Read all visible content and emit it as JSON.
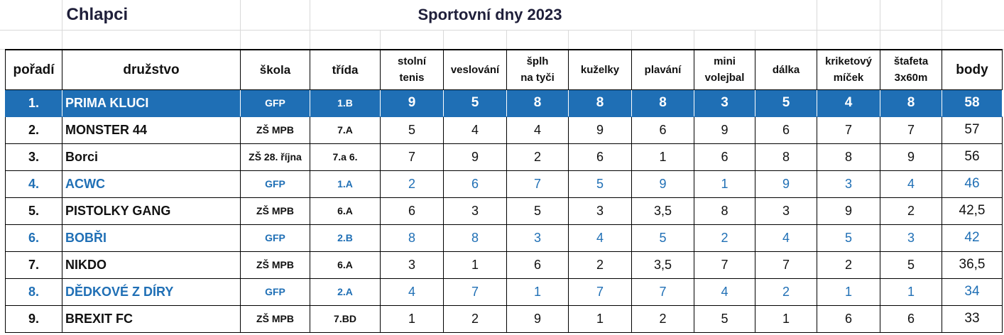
{
  "title_left": "Chlapci",
  "title_center": "Sportovní dny 2023",
  "headers": {
    "rank": "pořadí",
    "team": "družstvo",
    "school": "škola",
    "class": "třída",
    "d1a": "stolní",
    "d1b": "tenis",
    "d2": "veslování",
    "d3a": "šplh",
    "d3b": "na tyči",
    "d4": "kuželky",
    "d5": "plavání",
    "d6a": "mini",
    "d6b": "volejbal",
    "d7": "dálka",
    "d8a": "kriketový",
    "d8b": "míček",
    "d9a": "štafeta",
    "d9b": "3x60m",
    "points": "body"
  },
  "rows": [
    {
      "rank": "1.",
      "team": "PRIMA KLUCI",
      "school": "GFP",
      "cls": "1.B",
      "scores": [
        "9",
        "5",
        "8",
        "8",
        "8",
        "3",
        "5",
        "4",
        "8"
      ],
      "points": "58"
    },
    {
      "rank": "2.",
      "team": "MONSTER 44",
      "school": "ZŠ MPB",
      "cls": "7.A",
      "scores": [
        "5",
        "4",
        "4",
        "9",
        "6",
        "9",
        "6",
        "7",
        "7"
      ],
      "points": "57"
    },
    {
      "rank": "3.",
      "team": "Borci",
      "school": "ZŠ 28. října",
      "cls": "7.a 6.",
      "scores": [
        "7",
        "9",
        "2",
        "6",
        "1",
        "6",
        "8",
        "8",
        "9"
      ],
      "points": "56"
    },
    {
      "rank": "4.",
      "team": "ACWC",
      "school": "GFP",
      "cls": "1.A",
      "scores": [
        "2",
        "6",
        "7",
        "5",
        "9",
        "1",
        "9",
        "3",
        "4"
      ],
      "points": "46"
    },
    {
      "rank": "5.",
      "team": "PISTOLKY GANG",
      "school": "ZŠ MPB",
      "cls": "6.A",
      "scores": [
        "6",
        "3",
        "5",
        "3",
        "3,5",
        "8",
        "3",
        "9",
        "2"
      ],
      "points": "42,5"
    },
    {
      "rank": "6.",
      "team": "BOBŘI",
      "school": "GFP",
      "cls": "2.B",
      "scores": [
        "8",
        "8",
        "3",
        "4",
        "5",
        "2",
        "4",
        "5",
        "3"
      ],
      "points": "42"
    },
    {
      "rank": "7.",
      "team": "NIKDO",
      "school": "ZŠ MPB",
      "cls": "6.A",
      "scores": [
        "3",
        "1",
        "6",
        "2",
        "3,5",
        "7",
        "7",
        "2",
        "5"
      ],
      "points": "36,5"
    },
    {
      "rank": "8.",
      "team": "DĚDKOVÉ Z DÍRY",
      "school": "GFP",
      "cls": "2.A",
      "scores": [
        "4",
        "7",
        "1",
        "7",
        "7",
        "4",
        "2",
        "1",
        "1"
      ],
      "points": "34"
    },
    {
      "rank": "9.",
      "team": "BREXIT FC",
      "school": "ZŠ MPB",
      "cls": "7.BD",
      "scores": [
        "1",
        "2",
        "9",
        "1",
        "2",
        "5",
        "1",
        "6",
        "6"
      ],
      "points": "33"
    }
  ],
  "colors": {
    "selected_row_bg": "#1f6fb5",
    "gfp_text": "#1f6fb5",
    "grid": "#d9d9d9"
  }
}
